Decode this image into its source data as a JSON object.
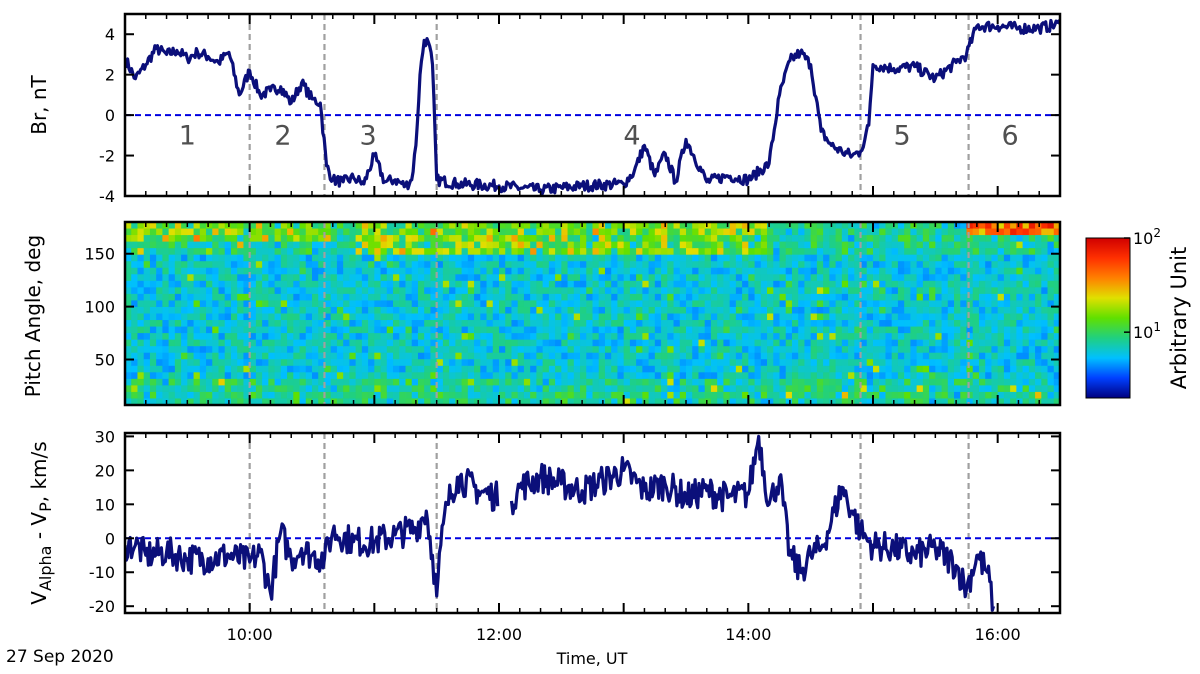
{
  "date_label": "27 Sep 2020",
  "xlabel": "Time, UT",
  "x_ticks": [
    "10:00",
    "12:00",
    "14:00",
    "16:00"
  ],
  "boundary_color": "#a0a0a0",
  "line_color": "#0b0f7a",
  "zero_line_color": "#0000e0",
  "chart_data": [
    {
      "type": "line",
      "ylabel": "Br, nT",
      "x_range": [
        "09:00",
        "16:30"
      ],
      "ylim": [
        -4,
        5
      ],
      "y_ticks": [
        4,
        2,
        0,
        -2,
        -4
      ],
      "region_boundaries": [
        "10:00",
        "10:36",
        "11:30",
        "14:54",
        "15:46"
      ],
      "region_labels": [
        {
          "text": "1",
          "x": "09:30"
        },
        {
          "text": "2",
          "x": "10:16"
        },
        {
          "text": "3",
          "x": "10:57"
        },
        {
          "text": "4",
          "x": "13:04"
        },
        {
          "text": "5",
          "x": "15:14"
        },
        {
          "text": "6",
          "x": "16:06"
        }
      ],
      "reference_line": 0,
      "series": [
        {
          "x": [
            "09:00",
            "09:05",
            "09:10",
            "09:15",
            "09:20",
            "09:25",
            "09:30",
            "09:35",
            "09:40",
            "09:45",
            "09:50",
            "09:55",
            "10:00",
            "10:05",
            "10:10",
            "10:15",
            "10:20",
            "10:25",
            "10:30",
            "10:34",
            "10:37",
            "10:40",
            "10:45",
            "10:50",
            "10:55",
            "11:00",
            "11:05",
            "11:10",
            "11:15",
            "11:18",
            "11:20",
            "11:22",
            "11:24",
            "11:26",
            "11:28",
            "11:30",
            "11:40",
            "12:00",
            "12:20",
            "12:40",
            "13:00",
            "13:05",
            "13:10",
            "13:15",
            "13:20",
            "13:25",
            "13:30",
            "13:40",
            "13:50",
            "14:00",
            "14:10",
            "14:15",
            "14:20",
            "14:25",
            "14:30",
            "14:35",
            "14:40",
            "14:45",
            "14:50",
            "14:54",
            "14:58",
            "15:00",
            "15:10",
            "15:20",
            "15:30",
            "15:40",
            "15:45",
            "15:50",
            "16:00",
            "16:10",
            "16:20",
            "16:30"
          ],
          "values": [
            2.8,
            1.8,
            2.5,
            3.3,
            3.0,
            3.2,
            2.8,
            3.1,
            2.9,
            2.6,
            3.1,
            1.0,
            2.2,
            1.0,
            1.2,
            1.4,
            0.6,
            1.6,
            0.8,
            0.6,
            -2.5,
            -3.2,
            -3.3,
            -3.1,
            -3.4,
            -2.0,
            -3.3,
            -3.2,
            -3.5,
            -3.2,
            -1.5,
            2.0,
            3.7,
            3.6,
            2.5,
            -3.2,
            -3.4,
            -3.5,
            -3.7,
            -3.5,
            -3.4,
            -2.8,
            -1.5,
            -3.0,
            -1.9,
            -3.3,
            -1.2,
            -3.3,
            -3.0,
            -3.2,
            -2.4,
            1.0,
            2.7,
            3.1,
            2.5,
            -0.8,
            -1.5,
            -1.8,
            -2.0,
            -1.8,
            -0.5,
            2.5,
            2.3,
            2.4,
            1.8,
            2.6,
            3.0,
            4.4,
            4.4,
            4.3,
            4.3,
            4.5
          ]
        }
      ]
    },
    {
      "type": "heatmap",
      "ylabel": "Pitch Angle, deg",
      "x_range": [
        "09:00",
        "16:30"
      ],
      "ylim": [
        7,
        180
      ],
      "y_ticks": [
        150,
        100,
        50
      ],
      "colorbar": {
        "label": "Arbitrary Unit",
        "scale": "log",
        "range": [
          2,
          100
        ],
        "tick_labels": [
          {
            "base": "10",
            "exp": "2"
          },
          {
            "base": "10",
            "exp": "1"
          }
        ],
        "colors": [
          "#00007f",
          "#0040ff",
          "#00c0ff",
          "#20d080",
          "#60e000",
          "#e0e000",
          "#ff8000",
          "#ff3000",
          "#d00000"
        ]
      },
      "features": [
        {
          "x_range": [
            "15:46",
            "16:30"
          ],
          "pitch_range": [
            165,
            180
          ],
          "level": "high"
        },
        {
          "x_range": [
            "10:50",
            "14:10"
          ],
          "pitch_range": [
            150,
            180
          ],
          "level": "enhanced"
        },
        {
          "x_range": [
            "09:00",
            "10:40"
          ],
          "pitch_range": [
            160,
            180
          ],
          "level": "enhanced"
        }
      ]
    },
    {
      "type": "line",
      "ylabel_main": "V",
      "ylabel_sub1": "Alpha",
      "ylabel_mid": " - V",
      "ylabel_sub2": "P",
      "ylabel_tail": ", km/s",
      "x_range": [
        "09:00",
        "16:30"
      ],
      "ylim": [
        -22,
        31
      ],
      "y_ticks": [
        30,
        20,
        10,
        0,
        -10,
        -20
      ],
      "region_boundaries": [
        "10:00",
        "10:36",
        "11:30",
        "14:54",
        "15:46"
      ],
      "reference_line": 0,
      "series": [
        {
          "x": [
            "09:00",
            "09:05",
            "09:10",
            "09:20",
            "09:30",
            "09:40",
            "09:50",
            "10:00",
            "10:05",
            "10:10",
            "10:15",
            "10:20",
            "10:25",
            "10:30",
            "10:36",
            "10:40",
            "10:50",
            "11:00",
            "11:10",
            "11:20",
            "11:25",
            "11:28",
            "11:30",
            "11:32",
            "11:35",
            "11:40",
            "11:50",
            "12:00",
            "12:02",
            "12:06",
            "12:10",
            "12:20",
            "12:30",
            "12:40",
            "12:50",
            "13:00",
            "13:10",
            "13:20",
            "13:30",
            "13:40",
            "13:50",
            "14:00",
            "14:05",
            "14:10",
            "14:15",
            "14:20",
            "14:25",
            "14:30",
            "14:35",
            "14:40",
            "14:45",
            "14:50",
            "14:54",
            "14:58",
            "15:00",
            "15:10",
            "15:20",
            "15:30",
            "15:40",
            "15:45",
            "15:50",
            "15:55",
            "15:58"
          ],
          "values": [
            -2,
            -2,
            -5,
            -4,
            -6,
            -6,
            -5,
            -7,
            -4,
            -16,
            2,
            -6,
            -3,
            -5,
            -6,
            2,
            -1,
            -1,
            1,
            3,
            8,
            -5,
            -17,
            -2,
            10,
            18,
            14,
            12,
            null,
            11,
            15,
            18,
            16,
            14,
            17,
            20,
            14,
            16,
            12,
            14,
            12,
            13,
            30,
            10,
            18,
            -5,
            -10,
            -5,
            -3,
            5,
            15,
            8,
            2,
            -1,
            -2,
            -3,
            -5,
            -3,
            -8,
            -15,
            -5,
            -10,
            -20
          ]
        }
      ]
    }
  ]
}
